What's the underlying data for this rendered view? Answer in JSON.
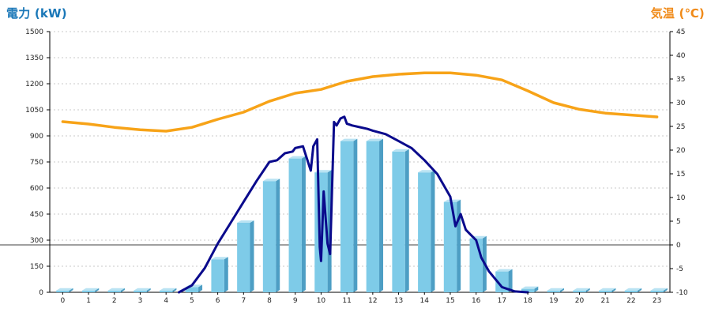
{
  "chart_data": {
    "type": "bar",
    "left_axis_title": "電力 (kW)",
    "right_axis_title": "気温 (℃)",
    "x": [
      0,
      1,
      2,
      3,
      4,
      5,
      6,
      7,
      8,
      9,
      10,
      11,
      12,
      13,
      14,
      15,
      16,
      17,
      18,
      19,
      20,
      21,
      22,
      23
    ],
    "y_left_ticks": [
      0,
      150,
      300,
      450,
      600,
      750,
      900,
      1050,
      1200,
      1350,
      1500
    ],
    "y_right_ticks": [
      -10,
      -5,
      0,
      5,
      10,
      15,
      20,
      25,
      30,
      35,
      40,
      45
    ],
    "ylim_left": [
      0,
      1500
    ],
    "ylim_right": [
      -10,
      45
    ],
    "grid": "horizontal dashed",
    "colors": {
      "bars": "#7ecbe8",
      "bar_side": "#4d9ec4",
      "bar_top": "#b9e3f3",
      "power_line": "#0a0a8c",
      "temperature_line": "#f7a318",
      "zero_line": "#000000",
      "grid": "#c8c8c8",
      "left_title": "#1b78b8",
      "right_title": "#f08a18"
    },
    "series": [
      {
        "type": "bar",
        "axis": "left",
        "values": [
          10,
          10,
          10,
          10,
          10,
          30,
          190,
          400,
          640,
          770,
          690,
          870,
          870,
          810,
          690,
          520,
          310,
          120,
          20,
          10,
          10,
          10,
          10,
          10
        ]
      },
      {
        "type": "line",
        "axis": "left",
        "x": [
          4.5,
          5.0,
          5.5,
          6.0,
          6.5,
          7.0,
          7.5,
          8.0,
          8.3,
          8.6,
          8.9,
          9.0,
          9.3,
          9.6,
          9.7,
          9.85,
          9.95,
          10.0,
          10.1,
          10.25,
          10.35,
          10.5,
          10.6,
          10.75,
          10.9,
          11.0,
          11.2,
          11.5,
          11.8,
          12.0,
          12.5,
          13.0,
          13.5,
          14.0,
          14.5,
          15.0,
          15.2,
          15.4,
          15.6,
          15.8,
          16.0,
          16.2,
          16.5,
          17.0,
          17.5,
          18.0
        ],
        "values": [
          0,
          40,
          140,
          280,
          400,
          520,
          640,
          750,
          760,
          800,
          810,
          830,
          840,
          700,
          840,
          880,
          260,
          180,
          580,
          280,
          220,
          980,
          960,
          1000,
          1010,
          970,
          960,
          950,
          940,
          930,
          910,
          870,
          830,
          760,
          680,
          550,
          380,
          450,
          360,
          330,
          300,
          200,
          120,
          30,
          5,
          0
        ]
      },
      {
        "type": "line",
        "axis": "right",
        "x": [
          0,
          1,
          2,
          3,
          4,
          5,
          6,
          7,
          8,
          9,
          10,
          11,
          12,
          13,
          14,
          15,
          16,
          17,
          18,
          19,
          20,
          21,
          22,
          23
        ],
        "values": [
          26,
          25.5,
          24.8,
          24.3,
          24,
          24.8,
          26.5,
          28,
          30.3,
          32,
          32.8,
          34.5,
          35.5,
          36,
          36.3,
          36.3,
          35.8,
          34.8,
          32.5,
          30,
          28.6,
          27.8,
          27.4,
          27
        ]
      }
    ]
  }
}
